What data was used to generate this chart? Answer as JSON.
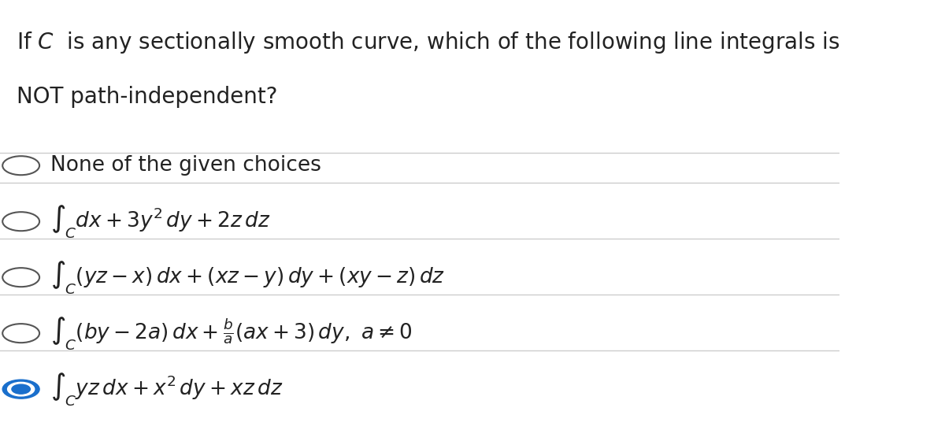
{
  "background_color": "#ffffff",
  "question_text": "If $C$ is any sectionally smooth curve, which of the following line integrals is\nNOT path-independent?",
  "question_fontsize": 20,
  "options": [
    {
      "label": "None of the given choices",
      "math": false,
      "selected": false,
      "text": "None of the given choices"
    },
    {
      "label": "$\\oint_C dx + 3y^2\\,dy + 2z\\,dz$",
      "math": true,
      "selected": false,
      "text": "$\\int_C dx + 3y^2\\,dy + 2z\\,dz$"
    },
    {
      "label": "$\\int_C (yz - x)\\,dx + (xz - y)\\,dy + (xy - z)\\,dz$",
      "math": true,
      "selected": false,
      "text": "$\\int_C (yz - x)\\,dx + (xz - y)\\,dy + (xy - z)\\,dz$"
    },
    {
      "label": "$\\int_C (by - 2a)\\,dx + \\frac{b}{a}(ax + 3)\\,dy,\\, a \\neq 0$",
      "math": true,
      "selected": false,
      "text": "$\\int_C (by - 2a)\\,dx + \\dfrac{b}{a}(ax + 3)\\,dy,\\, a \\neq 0$"
    },
    {
      "label": "$\\int_C yz\\,dx + x^2\\,dy + xz\\,dz$",
      "math": true,
      "selected": true,
      "text": "$\\int_C yz\\,dx + x^2\\,dy + xz\\,dz$"
    }
  ],
  "circle_color_unselected": "#ffffff",
  "circle_color_selected": "#1a6fcc",
  "circle_edge_unselected": "#555555",
  "circle_edge_selected": "#1a6fcc",
  "text_color": "#222222",
  "line_color": "#cccccc",
  "option_fontsize": 19,
  "figsize": [
    12.0,
    5.46
  ]
}
